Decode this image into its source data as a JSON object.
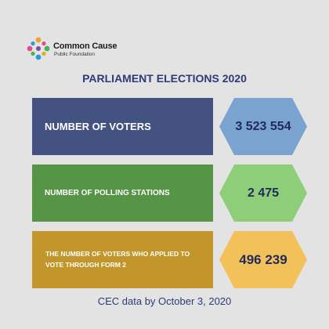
{
  "brand": {
    "name": "Common Cause",
    "subtitle": "Public Foundation"
  },
  "title": "PARLIAMENT ELECTIONS 2020",
  "rows": [
    {
      "label": "NUMBER OF VOTERS",
      "value": "3 523 554"
    },
    {
      "label": "NUMBER OF POLLING STATIONS",
      "value": "2 475"
    },
    {
      "label": "THE NUMBER OF VOTERS WHO APPLIED TO VOTE THROUGH FORM 2",
      "value": "496 239"
    }
  ],
  "footer": "CEC data by October 3, 2020",
  "colors": {
    "background": "#e3e3e3",
    "title": "#2e3a78",
    "row_voters": "#435280",
    "row_stations": "#569545",
    "row_form2": "#c3962b",
    "hex_voters": "#7ba3cf",
    "hex_stations": "#8fce79",
    "hex_form2": "#f2c15a"
  }
}
